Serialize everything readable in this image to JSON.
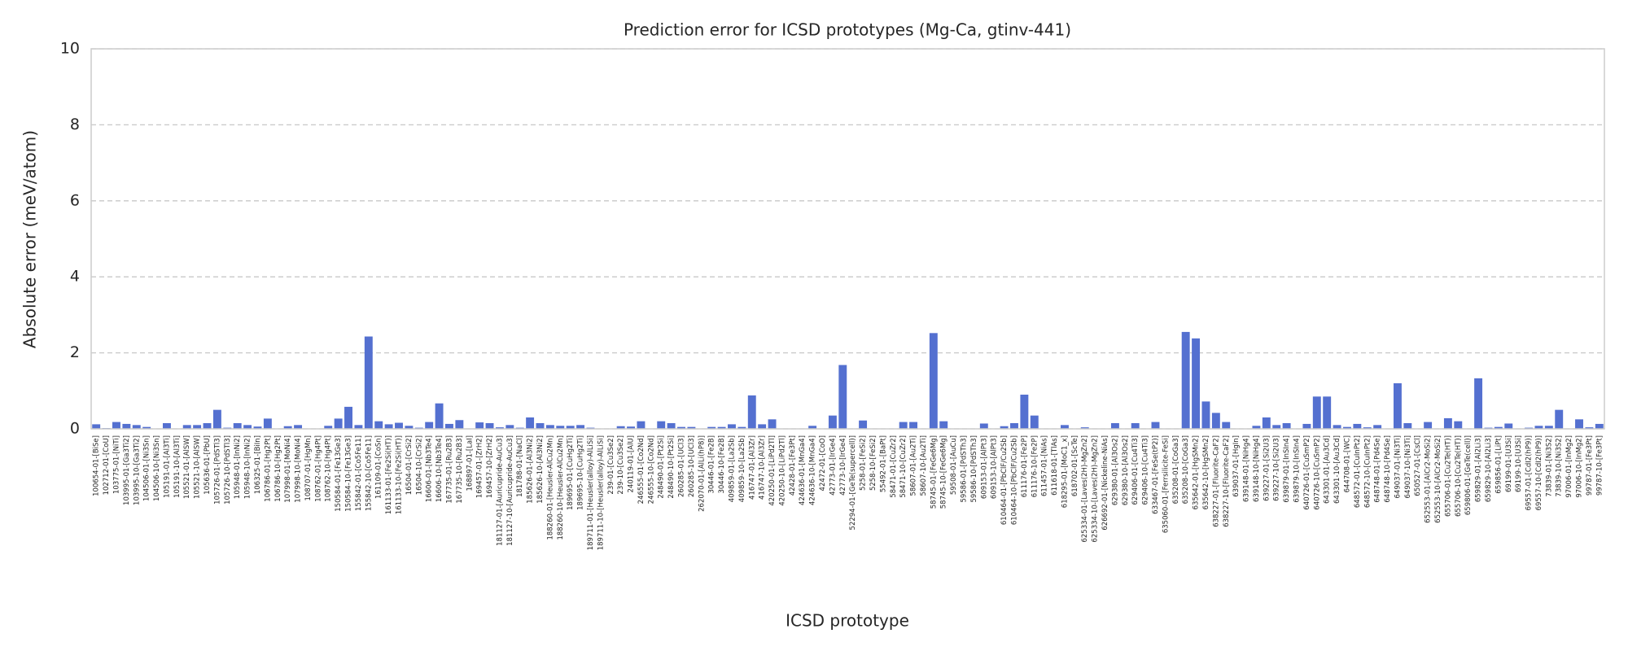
{
  "chart_data": {
    "type": "bar",
    "title": "Prediction error for ICSD prototypes (Mg-Ca, gtinv-441)",
    "x_label": "ICSD prototype",
    "y_label": "Absolute error (meV/atom)",
    "color": "#5470d0",
    "grid": true,
    "ylim": [
      0,
      10
    ],
    "yticks": [
      0,
      2,
      4,
      6,
      8,
      10
    ],
    "categories": [
      "100654-01-[BiSe]",
      "102712-01-[CoU]",
      "103775-01-[NiTi]",
      "103995-01-[Ga3Ti2]",
      "103995-10-[Ga3Ti2]",
      "104506-01-[Ni3Sn]",
      "104506-10-[Ni3Sn]",
      "105191-01-[Al3Ti]",
      "105191-10-[Al3Ti]",
      "105521-01-[AlSW]",
      "105521-10-[AlSW]",
      "105636-01-[PbU]",
      "105726-01-[PdSTl3]",
      "105726-10-[PdSTl3]",
      "105948-01-[InNi2]",
      "105948-10-[InNi2]",
      "106325-01-[BiIn]",
      "106786-01-[Hg2Pt]",
      "106786-10-[Hg2Pt]",
      "107998-01-[MoNi4]",
      "107998-10-[MoNi4]",
      "108707-01-[HgMn]",
      "108762-01-[Hg4Pt]",
      "108762-10-[Hg4Pt]",
      "150584-01-[Fe13Ge3]",
      "150584-10-[Fe13Ge3]",
      "155842-01-[Co5Fe11]",
      "155842-10-[Co5Fe11]",
      "161109-01-[CoSn]",
      "161133-01-[Fe2Si(HT)]",
      "161133-10-[Fe2Si(HT)]",
      "16504-01-[CrSi2]",
      "16504-10-[CrSi2]",
      "16606-01-[Nb3Te4]",
      "16606-10-[Nb3Te4]",
      "167735-01-[Ru2B3]",
      "167735-10-[Ru2B3]",
      "168897-01-[LaI]",
      "169457-01-[ZrH2]",
      "169457-10-[ZrH2]",
      "181127-01-[Auricupride-AuCu3]",
      "181127-10-[Auricupride-AuCu3]",
      "181788-01-[NaCl]",
      "185626-01-[Al3Ni2]",
      "185626-10-[Al3Ni2]",
      "188260-01-[Heusler-AlCu2Mn]",
      "188260-10-[Heusler-AlCu2Mn]",
      "189695-01-[CuHg2Ti]",
      "189695-10-[CuHg2Ti]",
      "189711-01-[Heusler(alloy)-AlLiSi]",
      "189711-10-[Heusler(alloy)-AlLiSi]",
      "239-01-[Cu3Se2]",
      "239-10-[Cu3Se2]",
      "240119-01-[AlU]",
      "246555-01-[Co2Nd]",
      "246555-10-[Co2Nd]",
      "248490-01-[Pt2Si]",
      "248490-10-[Pt2Si]",
      "260285-01-[UCl3]",
      "260285-10-[UCl3]",
      "262070-01-[AlLi(hP8)]",
      "30446-01-[Fe2B]",
      "30446-10-[Fe2B]",
      "409859-01-[La2Sb]",
      "409859-10-[La2Sb]",
      "416747-01-[Al3Zr]",
      "416747-10-[Al3Zr]",
      "420250-01-[LiPd2Tl]",
      "420250-10-[LiPd2Tl]",
      "42428-01-[Fe3Pt]",
      "424636-01-[MnGa4]",
      "424636-10-[MnGa4]",
      "42472-01-[CoO]",
      "42773-01-[IrGe4]",
      "42773-10-[IrGe4]",
      "52294-01-[GeTe(supercell)]",
      "5258-01-[FeSi2]",
      "5258-10-[FeSi2]",
      "55492-01-[BaPt]",
      "58471-01-[CuZr2]",
      "58471-10-[CuZr2]",
      "58607-01-[Au2Ti]",
      "58607-10-[Au2Ti]",
      "58745-01-[FeGe6Mg]",
      "58745-10-[FeGe6Mg]",
      "59508-01-[AuCu]",
      "59586-01-[PdSTh3]",
      "59586-10-[PdSTh3]",
      "609153-01-[AlPt3]",
      "609153-10-[AlPt3]",
      "610464-01-[PbClF/Cu2Sb]",
      "610464-10-[PbClF/Cu2Sb]",
      "611176-01-[Fe2P]",
      "611176-10-[Fe2P]",
      "611457-01-[NiAs]",
      "611618-01-[TlAs]",
      "618295-01-[MoC1_x]",
      "618702-01-[ScTe]",
      "625334-01-[Laves(2H)-MgZn2]",
      "625334-10-[Laves(2H)-MgZn2]",
      "626692-01-[Nickeline-NiAs]",
      "629380-01-[Al3Os2]",
      "629380-10-[Al3Os2]",
      "629406-01-[Cu4Ti3]",
      "629406-10-[Cu4Ti3]",
      "633467-01-[FeSe(tP2)]",
      "635060-01-[Ferrsilicite-FeSi]",
      "635208-01-[CoGa3]",
      "635208-10-[CoGa3]",
      "635642-01-[HgSMn2]",
      "635642-10-[HgSMn2]",
      "638227-01-[Fluorite-CaF2]",
      "638227-10-[Fluorite-CaF2]",
      "639037-01-[HgIn]",
      "639148-01-[NiHg4]",
      "639148-10-[NiHg4]",
      "639227-01-[Si2U3]",
      "639227-10-[Si2U3]",
      "639879-01-[InSIn4]",
      "639879-10-[InSIn4]",
      "640726-01-[CuSmP2]",
      "640726-10-[CuSmP2]",
      "643301-01-[Au3Cd]",
      "643301-10-[Au3Cd]",
      "644708-01-[WC]",
      "648572-01-[CuInPt2]",
      "648572-10-[CuInPt2]",
      "648748-01-[Pd4Se]",
      "648748-10-[Pd4Se]",
      "649037-01-[Ni3Ti]",
      "649037-10-[Ni3Ti]",
      "650527-01-[CsCl]",
      "652553-01-[AlCr2-MoSi2]",
      "652553-10-[AlCr2-MoSi2]",
      "655706-01-[Cu2Te(HT)]",
      "655706-10-[Cu2Te(HT)]",
      "659806-01-[GeTe(cell)]",
      "659829-01-[Al2Li3]",
      "659829-10-[Al2Li3]",
      "659856-01-[LiPt]",
      "69199-01-[U3Si]",
      "69199-10-[U3Si]",
      "69557-01-[CdI2(hP9)]",
      "69557-10-[CdI2(hP9)]",
      "73839-01-[Ni3S2]",
      "73839-10-[Ni3S2]",
      "97006-01-[InMg2]",
      "97006-10-[InMg2]",
      "99787-01-[Fe3Pt]",
      "99787-10-[Fe3Pt]"
    ],
    "values": [
      0.12,
      0.02,
      0.18,
      0.13,
      0.1,
      0.05,
      0,
      0.15,
      0,
      0.1,
      0.1,
      0.15,
      0.5,
      0.03,
      0.15,
      0.1,
      0.06,
      0.27,
      0,
      0.07,
      0.1,
      0,
      0,
      0.08,
      0.27,
      0.58,
      0.1,
      2.43,
      0.2,
      0.12,
      0.16,
      0.08,
      0.03,
      0.18,
      0.67,
      0.13,
      0.23,
      0,
      0.17,
      0.15,
      0.04,
      0.1,
      0.03,
      0.3,
      0.15,
      0.1,
      0.08,
      0.08,
      0.1,
      0.03,
      0,
      0,
      0.07,
      0.06,
      0.2,
      0,
      0.2,
      0.15,
      0.05,
      0.05,
      0,
      0.05,
      0.05,
      0.12,
      0.05,
      0.88,
      0.12,
      0.25,
      0,
      0,
      0,
      0.08,
      0,
      0.35,
      1.68,
      0,
      0.22,
      0,
      0,
      0,
      0.18,
      0.18,
      0,
      2.52,
      0.2,
      0,
      0,
      0,
      0.14,
      0,
      0.07,
      0.15,
      0.9,
      0.35,
      0,
      0,
      0.1,
      0,
      0.04,
      0,
      0,
      0.15,
      0,
      0.15,
      0,
      0.18,
      0,
      0,
      2.55,
      2.38,
      0.72,
      0.42,
      0.18,
      0,
      0,
      0.08,
      0.3,
      0.1,
      0.15,
      0,
      0.13,
      0.85,
      0.85,
      0.1,
      0.05,
      0.13,
      0.04,
      0.1,
      0,
      1.2,
      0.15,
      0,
      0.18,
      0,
      0.28,
      0.2,
      0,
      1.33,
      0.03,
      0.05,
      0.14,
      0,
      0.03,
      0.08,
      0.08,
      0.5,
      0,
      0.25,
      0.04,
      0.13
    ]
  }
}
